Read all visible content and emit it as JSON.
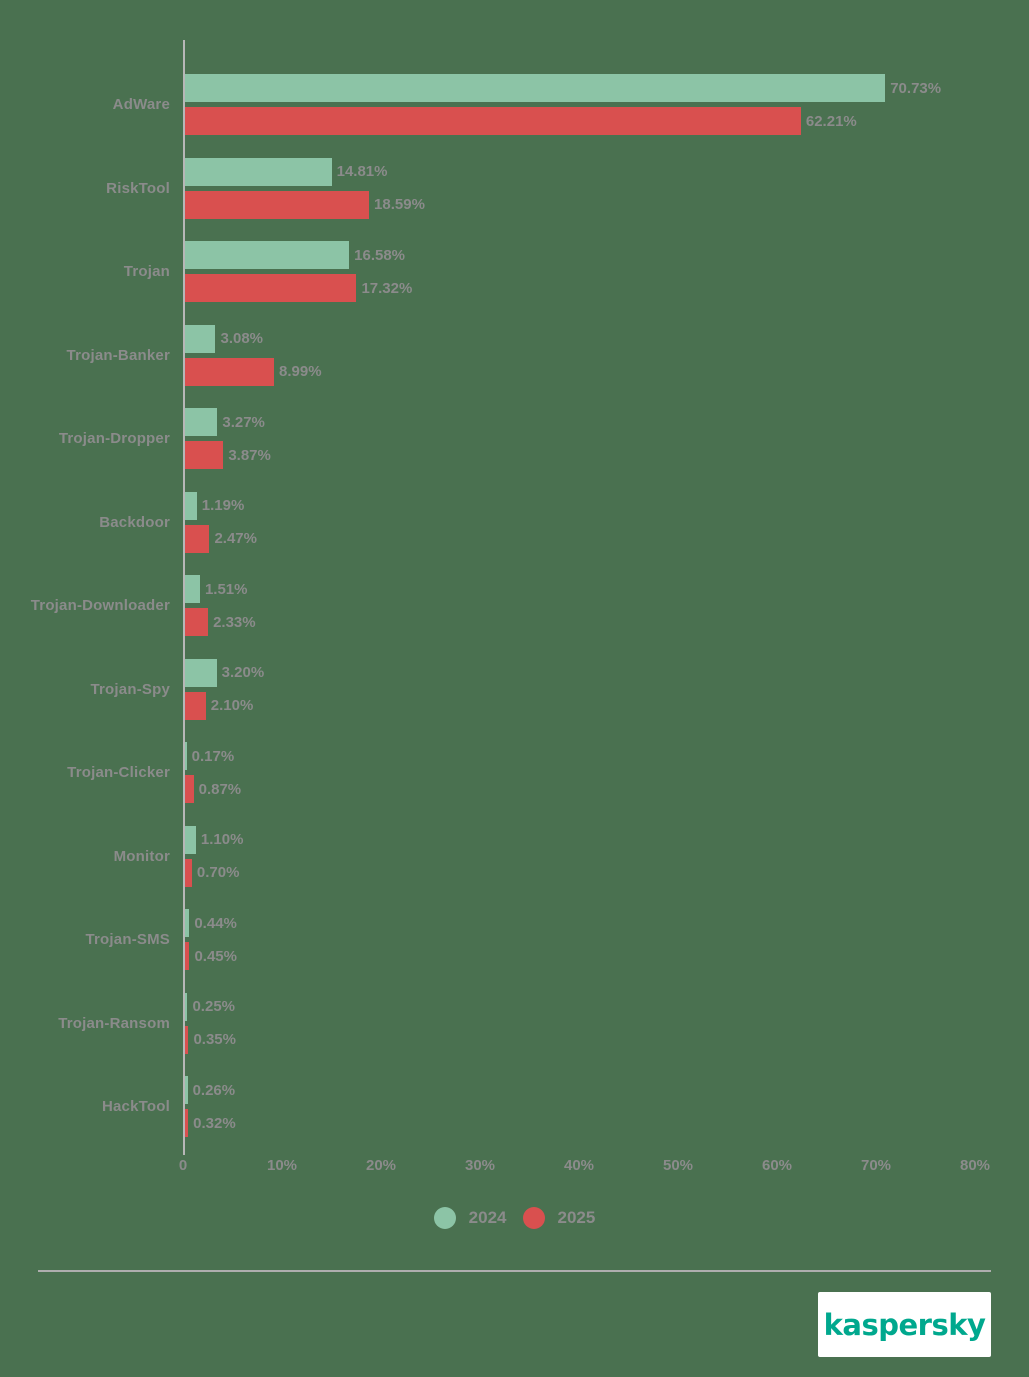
{
  "page": {
    "background_color": "#4a7150",
    "text_color": "#8b8b8b"
  },
  "chart_data": {
    "type": "bar",
    "orientation": "horizontal",
    "title": "",
    "categories": [
      "AdWare",
      "RiskTool",
      "Trojan",
      "Trojan-Banker",
      "Trojan-Dropper",
      "Backdoor",
      "Trojan-Downloader",
      "Trojan-Spy",
      "Trojan-Clicker",
      "Monitor",
      "Trojan-SMS",
      "Trojan-Ransom",
      "HackTool"
    ],
    "series": [
      {
        "name": "2024",
        "color": "#8cc4a6",
        "values": [
          70.73,
          14.81,
          16.58,
          3.08,
          3.27,
          1.19,
          1.51,
          3.2,
          0.17,
          1.1,
          0.44,
          0.25,
          0.26
        ],
        "labels": [
          "70.73%",
          "14.81%",
          "16.58%",
          "3.08%",
          "3.27%",
          "1.19%",
          "1.51%",
          "3.20%",
          "0.17%",
          "1.10%",
          "0.44%",
          "0.25%",
          "0.26%"
        ]
      },
      {
        "name": "2025",
        "color": "#d9504f",
        "values": [
          62.21,
          18.59,
          17.32,
          8.99,
          3.87,
          2.47,
          2.33,
          2.1,
          0.87,
          0.7,
          0.45,
          0.35,
          0.32
        ],
        "labels": [
          "62.21%",
          "18.59%",
          "17.32%",
          "8.99%",
          "3.87%",
          "2.47%",
          "2.33%",
          "2.10%",
          "0.87%",
          "0.70%",
          "0.45%",
          "0.35%",
          "0.32%"
        ]
      }
    ],
    "x_ticks": [
      "0",
      "10%",
      "20%",
      "30%",
      "40%",
      "50%",
      "60%",
      "70%",
      "80%"
    ],
    "x_tick_values": [
      0,
      10,
      20,
      30,
      40,
      50,
      60,
      70,
      80
    ],
    "xlim": [
      0,
      80
    ],
    "grid": false,
    "legend_position": "bottom-center"
  },
  "footer": {
    "brand": "kaspersky",
    "brand_color": "#00a88e"
  }
}
